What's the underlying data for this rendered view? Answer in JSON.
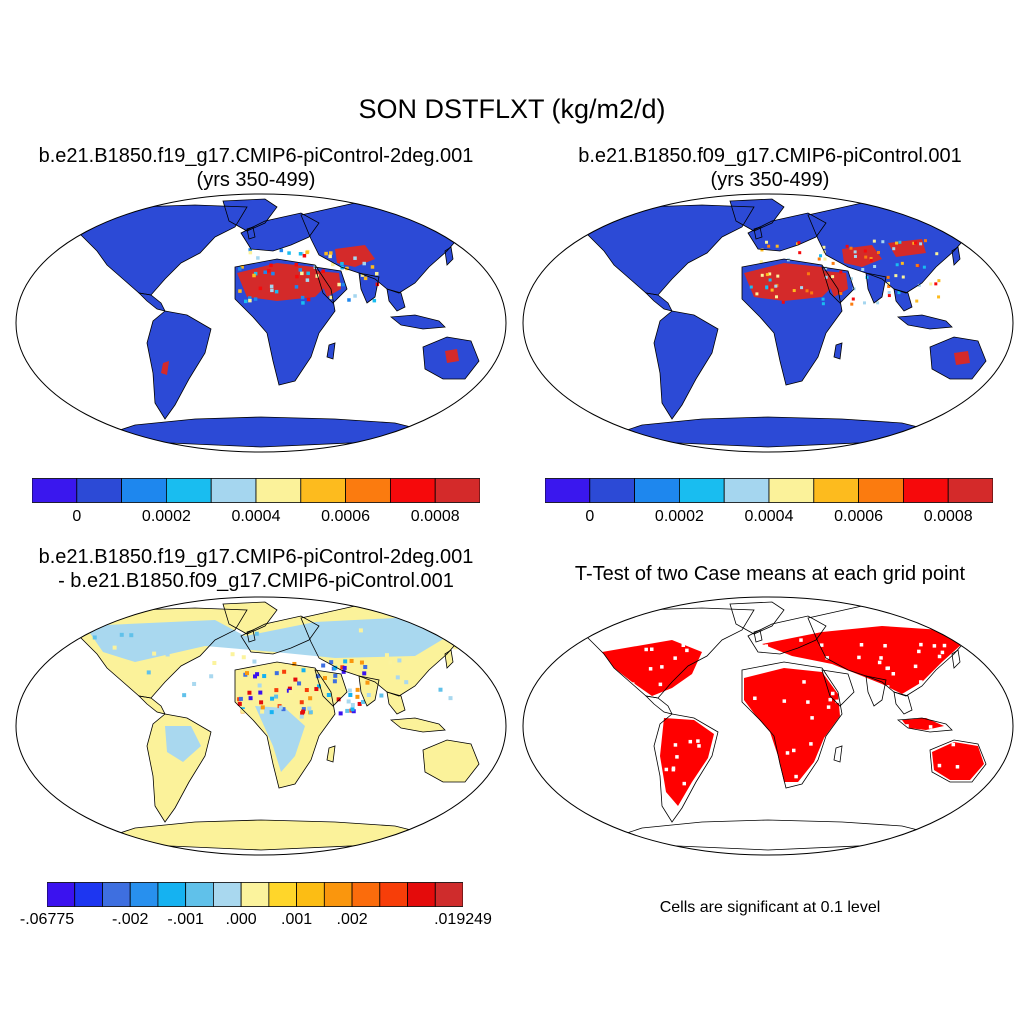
{
  "main_title": "SON DSTFLXT (kg/m2/d)",
  "panels": {
    "top_left": {
      "title_line1": "b.e21.B1850.f19_g17.CMIP6-piControl-2deg.001",
      "title_line2": "(yrs 350-499)"
    },
    "top_right": {
      "title_line1": "b.e21.B1850.f09_g17.CMIP6-piControl.001",
      "title_line2": "(yrs 350-499)"
    },
    "bottom_left": {
      "title_line1": "b.e21.B1850.f19_g17.CMIP6-piControl-2deg.001",
      "title_line2": "- b.e21.B1850.f09_g17.CMIP6-piControl.001"
    },
    "bottom_right": {
      "title_line1": "T-Test of two Case means at each grid point",
      "note": "Cells are significant at 0.1 level"
    }
  },
  "colorbars": {
    "abs": {
      "colors": [
        "#3a17ee",
        "#2c4ad6",
        "#1e87ee",
        "#19bdf0",
        "#a5d6ef",
        "#fbf29a",
        "#fdbb1e",
        "#fb7b0f",
        "#f6090b",
        "#d42a2a"
      ],
      "labels": [
        "0",
        "0.0002",
        "0.0004",
        "0.0006",
        "0.0008"
      ]
    },
    "diff": {
      "colors": [
        "#3b12ef",
        "#1d36f1",
        "#3e6fe0",
        "#2890ee",
        "#15b2f1",
        "#60c1ea",
        "#a9d8ef",
        "#fbf39d",
        "#ffd62a",
        "#fcbd14",
        "#fa960d",
        "#fb6c0c",
        "#f73e09",
        "#e40b0b",
        "#cf2c2c"
      ],
      "labels": [
        "-.06775",
        "-.002",
        "-.001",
        ".000",
        ".001",
        ".002",
        ".019249"
      ]
    }
  },
  "colors": {
    "land_abs": "#2c4ad6",
    "land_diff": "#fbf29a",
    "diff_secondary": "#a9d8ef",
    "significant": "#ff0000",
    "dust_high": "#d42a2a",
    "coast": "#000000"
  }
}
